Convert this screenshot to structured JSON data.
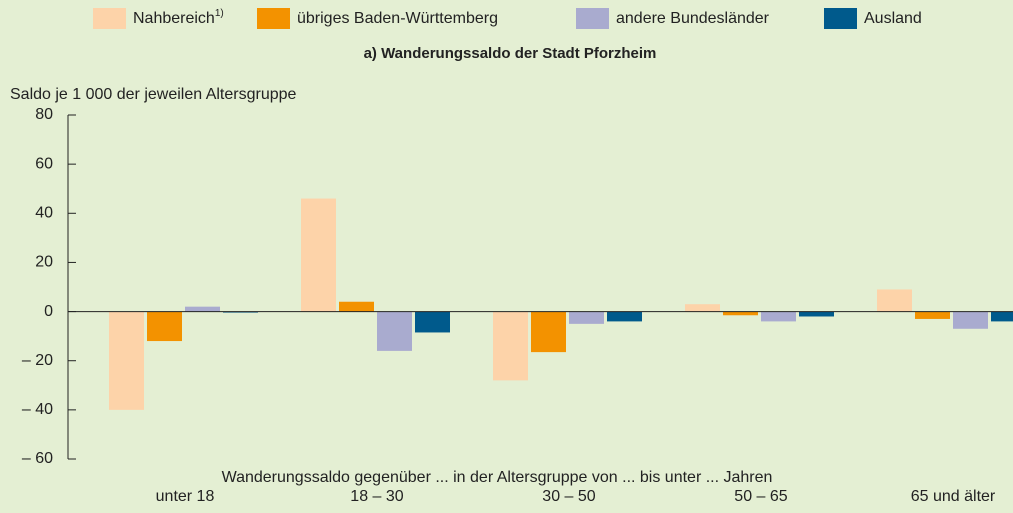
{
  "chart_data": {
    "type": "bar",
    "title": "a) Wanderungssaldo der Stadt Pforzheim",
    "y_label": "Saldo je 1 000 der jeweilen Altersgruppe",
    "x_label": "Wanderungssaldo gegenüber ... in der Altersgruppe von ... bis unter ... Jahren",
    "categories": [
      "unter 18",
      "18 – 30",
      "30 – 50",
      "50 – 65",
      "65 und älter"
    ],
    "series": [
      {
        "name": "Nahbereich",
        "name_superscript": "1)",
        "color": "#fdd3a9",
        "values": [
          -40,
          46,
          -28,
          3,
          9
        ]
      },
      {
        "name": "übriges Baden-Württemberg",
        "color": "#f39200",
        "values": [
          -12,
          4,
          -16.5,
          -1.5,
          -3
        ]
      },
      {
        "name": "andere Bundesländer",
        "color": "#a9abcf",
        "values": [
          2,
          -16,
          -5,
          -4,
          -7
        ]
      },
      {
        "name": "Ausland",
        "color": "#005a8c",
        "values": [
          0,
          -8.5,
          -4,
          -2,
          -4
        ]
      }
    ],
    "ylim": [
      -60,
      80
    ],
    "yticks": [
      80,
      60,
      40,
      20,
      0,
      {
        "value": -20,
        "label": "– 20"
      },
      {
        "value": -40,
        "label": "– 40"
      },
      {
        "value": -60,
        "label": "– 60"
      }
    ],
    "legend": "top"
  }
}
